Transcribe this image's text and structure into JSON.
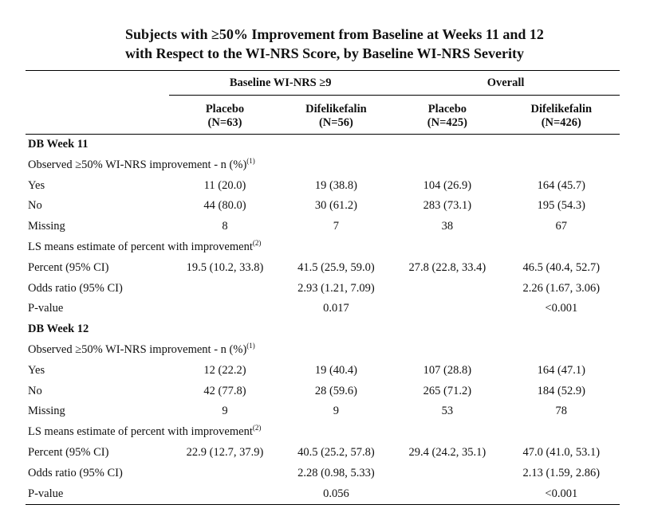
{
  "title": {
    "line1": "Subjects with ≥50% Improvement from Baseline at Weeks 11 and 12",
    "line2": "with Respect to the WI-NRS Score, by Baseline WI-NRS Severity"
  },
  "groups": {
    "baseline": "Baseline WI-NRS ≥9",
    "overall": "Overall"
  },
  "columns": [
    {
      "arm": "Placebo",
      "n": "(N=63)"
    },
    {
      "arm": "Difelikefalin",
      "n": "(N=56)"
    },
    {
      "arm": "Placebo",
      "n": "(N=425)"
    },
    {
      "arm": "Difelikefalin",
      "n": "(N=426)"
    }
  ],
  "week11": {
    "header": "DB Week 11",
    "observed": {
      "text": "Observed ≥50% WI-NRS improvement - n (%)",
      "sup": "(1)"
    },
    "yes": {
      "label": "Yes",
      "v": [
        "11 (20.0)",
        "19 (38.8)",
        "104 (26.9)",
        "164 (45.7)"
      ]
    },
    "no": {
      "label": "No",
      "v": [
        "44 (80.0)",
        "30 (61.2)",
        "283 (73.1)",
        "195 (54.3)"
      ]
    },
    "missing": {
      "label": "Missing",
      "v": [
        "8",
        "7",
        "38",
        "67"
      ]
    },
    "ls": {
      "text": "LS means estimate of percent with improvement",
      "sup": "(2)"
    },
    "percent": {
      "label": "Percent (95% CI)",
      "v": [
        "19.5 (10.2, 33.8)",
        "41.5 (25.9, 59.0)",
        "27.8 (22.8, 33.4)",
        "46.5 (40.4, 52.7)"
      ]
    },
    "odds": {
      "label": "Odds ratio (95% CI)",
      "v": [
        "",
        "2.93 (1.21, 7.09)",
        "",
        "2.26 (1.67, 3.06)"
      ]
    },
    "pvalue": {
      "label": "P-value",
      "v": [
        "",
        "0.017",
        "",
        "<0.001"
      ]
    }
  },
  "week12": {
    "header": "DB Week 12",
    "observed": {
      "text": "Observed ≥50% WI-NRS improvement - n (%)",
      "sup": "(1)"
    },
    "yes": {
      "label": "Yes",
      "v": [
        "12 (22.2)",
        "19 (40.4)",
        "107 (28.8)",
        "164 (47.1)"
      ]
    },
    "no": {
      "label": "No",
      "v": [
        "42 (77.8)",
        "28 (59.6)",
        "265 (71.2)",
        "184 (52.9)"
      ]
    },
    "missing": {
      "label": "Missing",
      "v": [
        "9",
        "9",
        "53",
        "78"
      ]
    },
    "ls": {
      "text": "LS means estimate of percent with improvement",
      "sup": "(2)"
    },
    "percent": {
      "label": "Percent (95% CI)",
      "v": [
        "22.9 (12.7, 37.9)",
        "40.5 (25.2, 57.8)",
        "29.4 (24.2, 35.1)",
        "47.0 (41.0, 53.1)"
      ]
    },
    "odds": {
      "label": "Odds ratio (95% CI)",
      "v": [
        "",
        "2.28 (0.98, 5.33)",
        "",
        "2.13 (1.59, 2.86)"
      ]
    },
    "pvalue": {
      "label": "P-value",
      "v": [
        "",
        "0.056",
        "",
        "<0.001"
      ]
    }
  }
}
